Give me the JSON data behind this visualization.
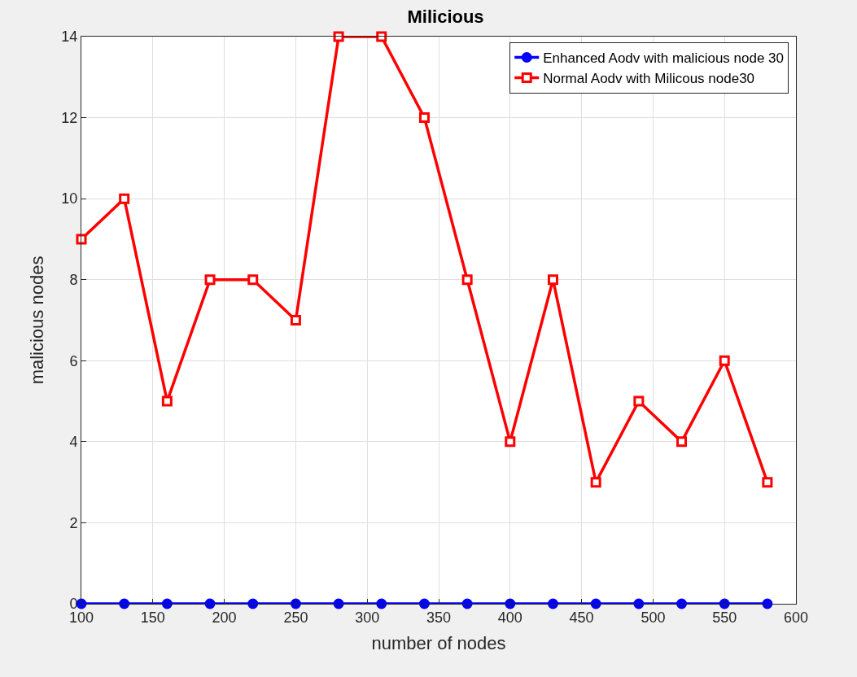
{
  "chart_data": {
    "type": "line",
    "title": "Milicious",
    "xlabel": "number of nodes",
    "ylabel": "malicious nodes",
    "x": [
      100,
      130,
      160,
      190,
      220,
      250,
      280,
      310,
      340,
      370,
      400,
      430,
      460,
      490,
      520,
      550,
      580
    ],
    "series": [
      {
        "name": "Enhanced Aodv with malicious node 30",
        "color": "#0000ff",
        "marker": "circle",
        "values": [
          0,
          0,
          0,
          0,
          0,
          0,
          0,
          0,
          0,
          0,
          0,
          0,
          0,
          0,
          0,
          0,
          0
        ]
      },
      {
        "name": "Normal Aodv with Milicous node30",
        "color": "#ff0000",
        "marker": "square",
        "values": [
          9,
          10,
          5,
          8,
          8,
          7,
          14,
          14,
          12,
          8,
          4,
          8,
          3,
          5,
          4,
          6,
          3
        ]
      }
    ],
    "xlim": [
      100,
      600
    ],
    "xticks": [
      100,
      150,
      200,
      250,
      300,
      350,
      400,
      450,
      500,
      550,
      600
    ],
    "ylim": [
      0,
      14
    ],
    "yticks": [
      0,
      2,
      4,
      6,
      8,
      10,
      12,
      14
    ],
    "grid": true,
    "legend": "top right",
    "line_style": "solid"
  }
}
